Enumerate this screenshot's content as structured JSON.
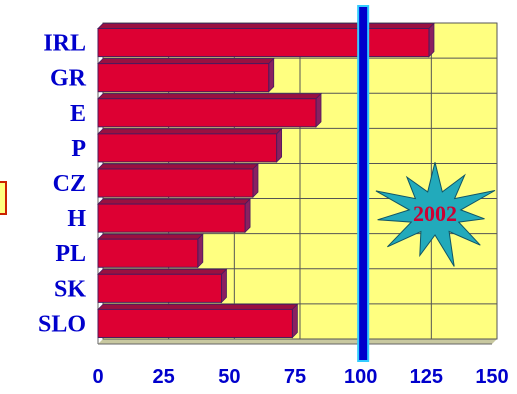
{
  "chart_data": {
    "type": "bar",
    "orientation": "horizontal",
    "categories": [
      "IRL",
      "GR",
      "E",
      "P",
      "CZ",
      "H",
      "PL",
      "SK",
      "SLO"
    ],
    "values": [
      126,
      65,
      83,
      68,
      59,
      56,
      38,
      47,
      74
    ],
    "xlim": [
      0,
      150
    ],
    "xticks": [
      "0",
      "25",
      "50",
      "75",
      "100",
      "125",
      "150"
    ],
    "reference_line": 100,
    "annotation": "2002",
    "grid": true,
    "colors": {
      "plot_bg": "#ffff80",
      "bar": "#dd0033",
      "bar_edge": "#4a1a5e",
      "reference_line": "#0000cc",
      "reference_glow": "#33ccff",
      "burst": "#22aabb",
      "text": "#0000cc"
    }
  }
}
